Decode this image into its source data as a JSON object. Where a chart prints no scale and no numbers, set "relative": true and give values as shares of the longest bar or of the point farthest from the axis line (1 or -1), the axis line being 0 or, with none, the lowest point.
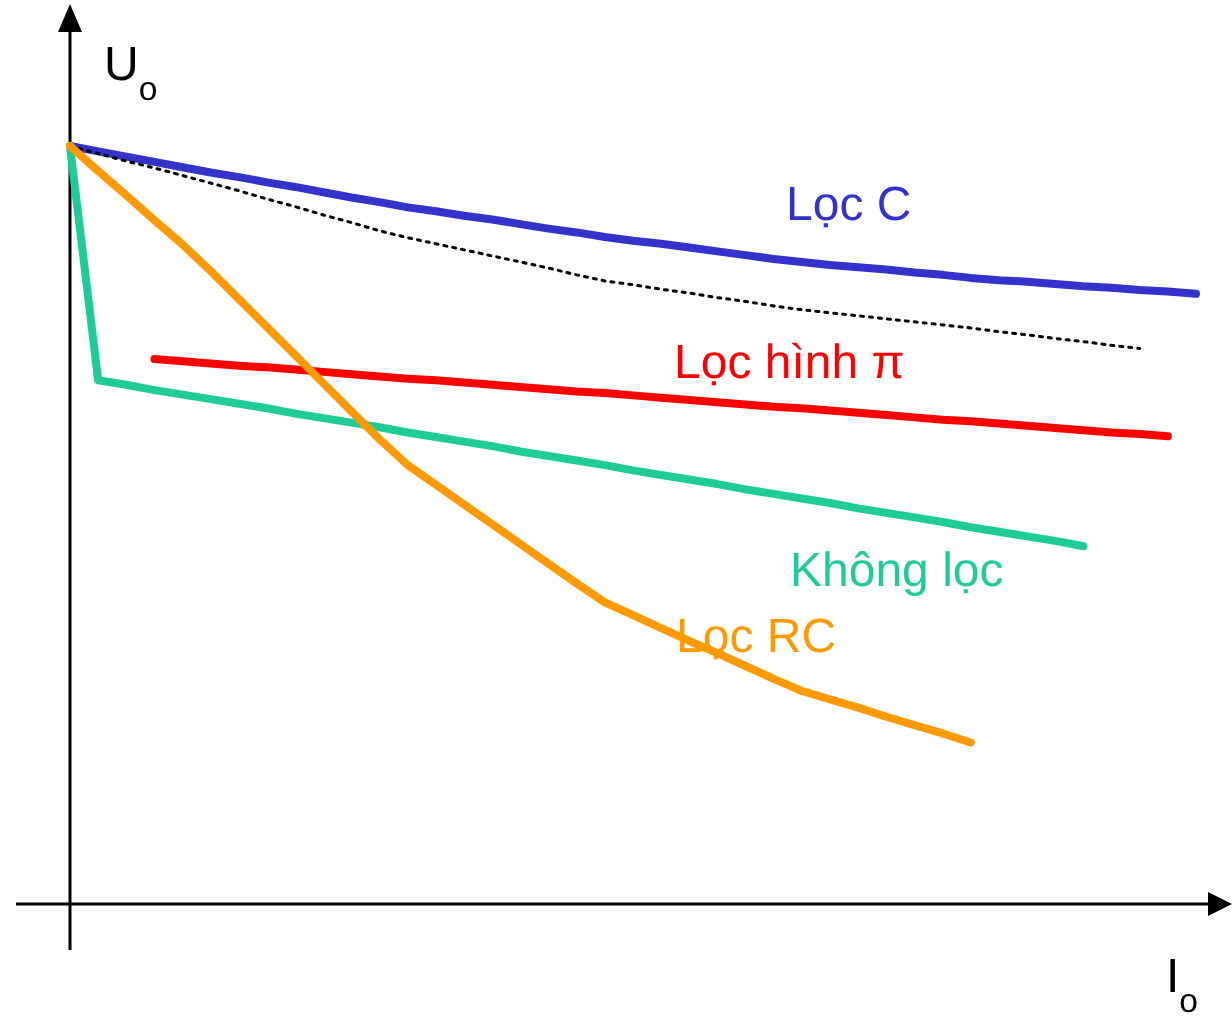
{
  "chart_data": {
    "type": "line",
    "relative": true,
    "xlabel": "I$_{o}$",
    "ylabel": "U$_{o}$",
    "marker": "none",
    "categories": [
      null,
      null,
      null,
      null,
      null,
      null,
      null,
      null,
      null,
      null,
      null,
      null,
      null,
      null,
      null,
      null,
      null,
      null,
      null,
      null,
      null,
      null,
      null,
      null,
      null,
      null,
      null,
      null,
      null,
      null,
      null,
      null,
      null,
      null,
      null,
      null,
      null,
      null,
      null,
      null,
      null
    ],
    "series": [
      {
        "name": "Lọc C",
        "color": "#3333cc",
        "values": [
          1,
          0.993,
          0.986,
          0.979,
          0.972,
          0.965,
          0.959,
          0.952,
          0.946,
          0.939,
          0.932,
          0.926,
          0.919,
          0.914,
          0.908,
          0.903,
          0.897,
          0.891,
          0.886,
          0.88,
          0.875,
          0.871,
          0.866,
          0.861,
          0.856,
          0.851,
          0.847,
          0.843,
          0.84,
          0.837,
          0.833,
          0.83,
          0.826,
          0.823,
          0.821,
          0.818,
          0.815,
          0.813,
          0.81,
          0.808,
          0.805
        ]
      },
      {
        "color": "#000000",
        "line_style": "dotted",
        "values": [
          1,
          0.99,
          0.98,
          0.971,
          0.961,
          0.951,
          0.941,
          0.93,
          0.92,
          0.909,
          0.899,
          0.888,
          0.879,
          0.871,
          0.863,
          0.855,
          0.847,
          0.839,
          0.83,
          0.822,
          0.817,
          0.811,
          0.806,
          0.8,
          0.795,
          0.789,
          0.784,
          0.78,
          0.776,
          0.772,
          0.768,
          0.764,
          0.76,
          0.755,
          0.751,
          0.746,
          0.742,
          0.737,
          0.733,
          null,
          null
        ]
      },
      {
        "name": "Lọc hình π",
        "color": "#ff0000",
        "values": [
          null,
          null,
          null,
          0.719,
          0.716,
          0.713,
          0.71,
          0.708,
          0.705,
          0.702,
          0.699,
          0.696,
          0.693,
          0.691,
          0.688,
          0.685,
          0.682,
          0.679,
          0.676,
          0.674,
          0.671,
          0.668,
          0.665,
          0.662,
          0.659,
          0.656,
          0.654,
          0.651,
          0.648,
          0.645,
          0.642,
          0.639,
          0.637,
          0.634,
          0.631,
          0.628,
          0.625,
          0.622,
          0.62,
          0.617,
          null
        ]
      },
      {
        "name": "Không lọc",
        "color": "#1fcc99",
        "values": [
          1,
          0.691,
          0.685,
          0.678,
          0.672,
          0.666,
          0.66,
          0.654,
          0.647,
          0.641,
          0.635,
          0.629,
          0.622,
          0.616,
          0.61,
          0.604,
          0.597,
          0.591,
          0.585,
          0.579,
          0.572,
          0.566,
          0.56,
          0.554,
          0.547,
          0.541,
          0.535,
          0.529,
          0.522,
          0.516,
          0.51,
          0.504,
          0.497,
          0.491,
          0.485,
          0.479,
          0.472,
          null,
          null,
          null,
          null
        ]
      },
      {
        "name": "Lọc RC",
        "color": "#ff9900",
        "values": [
          1,
          0.967,
          0.935,
          0.902,
          0.87,
          0.835,
          0.798,
          0.761,
          0.724,
          0.687,
          0.65,
          0.613,
          0.579,
          0.553,
          0.527,
          0.501,
          0.475,
          0.449,
          0.423,
          0.398,
          0.381,
          0.364,
          0.347,
          0.331,
          0.314,
          0.297,
          0.281,
          0.27,
          0.259,
          0.247,
          0.236,
          0.225,
          0.213,
          null,
          null,
          null,
          null,
          null,
          null,
          null,
          null
        ]
      }
    ]
  }
}
